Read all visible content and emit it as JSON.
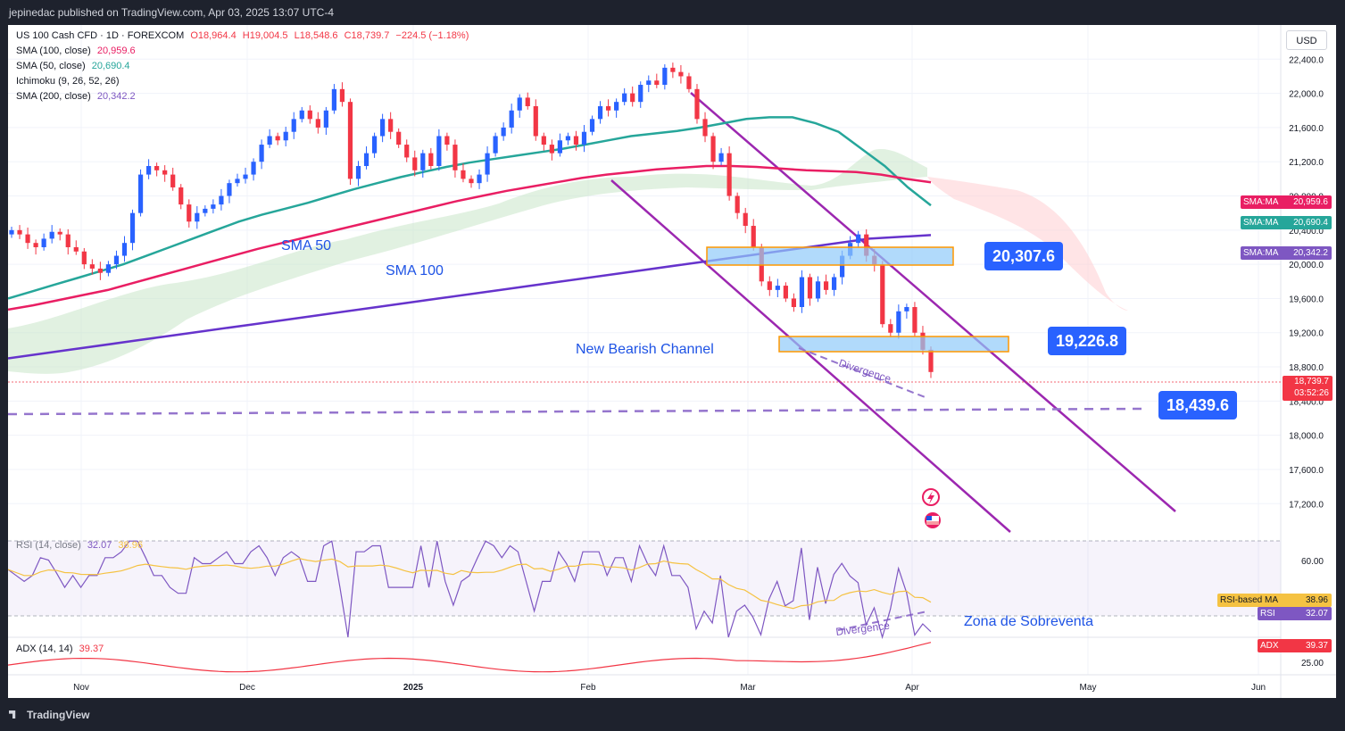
{
  "header": {
    "published": "jepinedac published on TradingView.com, Apr 03, 2025 13:07 UTC-4"
  },
  "footer": {
    "brand": "TradingView"
  },
  "chart": {
    "currency_button": "USD",
    "symbol_line": {
      "symbol": "US 100 Cash CFD · 1D · FOREXCOM",
      "o": "O18,964.4",
      "h": "H19,004.5",
      "l": "L18,548.6",
      "c": "C18,739.7",
      "chg": "−224.5 (−1.18%)"
    },
    "indicators": [
      {
        "label": "SMA (100, close)",
        "value": "20,959.6",
        "color": "#e91e63"
      },
      {
        "label": "SMA (50, close)",
        "value": "20,690.4",
        "color": "#26a69a"
      },
      {
        "label": "Ichimoku (9, 26, 52, 26)",
        "value": "",
        "color": "#131722"
      },
      {
        "label": "SMA (200, close)",
        "value": "20,342.2",
        "color": "#7e57c2"
      }
    ],
    "rsi_legend": {
      "label": "RSI (14, close)",
      "value": "32.07",
      "ma": "38.96"
    },
    "adx_legend": {
      "label": "ADX (14, 14)",
      "value": "39.37"
    },
    "annotations": {
      "sma50": "SMA 50",
      "sma100": "SMA 100",
      "channel": "New Bearish Channel",
      "divergence_price": "Divergence",
      "divergence_rsi": "Divergence",
      "oversold": "Zona de Sobreventa"
    },
    "callouts": {
      "upper": "20,307.6",
      "middle": "19,226.8",
      "lower": "18,439.6"
    },
    "price_axis_ticks": [
      "22,400.0",
      "22,000.0",
      "21,600.0",
      "21,200.0",
      "20,800.0",
      "20,400.0",
      "20,000.0",
      "19,600.0",
      "19,200.0",
      "18,800.0",
      "18,400.0",
      "18,000.0",
      "17,600.0",
      "17,200.0"
    ],
    "rsi_axis_ticks": [
      "60.00"
    ],
    "adx_axis_ticks": [
      "25.00"
    ],
    "time_axis": [
      "Nov",
      "Dec",
      "2025",
      "Feb",
      "Mar",
      "Apr",
      "May",
      "Jun"
    ],
    "price_tags": [
      {
        "label": "SMA:MA",
        "value": "20,959.6",
        "color": "#e91e63"
      },
      {
        "label": "SMA:MA",
        "value": "20,690.4",
        "color": "#26a69a"
      },
      {
        "label": "SMA:MA",
        "value": "20,342.2",
        "color": "#7e57c2"
      },
      {
        "label": "",
        "value": "18,739.7",
        "sub": "03:52:26",
        "color": "#f23645"
      },
      {
        "label": "RSI-based MA",
        "value": "38.96",
        "color": "#f5c242"
      },
      {
        "label": "RSI",
        "value": "32.07",
        "color": "#7e57c2"
      },
      {
        "label": "ADX",
        "value": "39.37",
        "color": "#f23645"
      }
    ],
    "colors": {
      "up": "#2962ff",
      "down": "#f23645",
      "channel": "#9c27b0",
      "zone_fill": "#90caf9",
      "zone_border": "#ff9800"
    }
  },
  "chart_data": {
    "type": "candlestick",
    "title": "US 100 Cash CFD · 1D · FOREXCOM",
    "ylim": [
      16900,
      22800
    ],
    "x_labels": [
      "Nov",
      "Dec",
      "2025",
      "Feb",
      "Mar",
      "Apr",
      "May",
      "Jun"
    ],
    "closes": [
      20400,
      20350,
      20250,
      20200,
      20300,
      20380,
      20350,
      20200,
      20150,
      20000,
      19950,
      19900,
      20000,
      20100,
      20250,
      20600,
      21050,
      21150,
      21100,
      21050,
      20900,
      20700,
      20500,
      20600,
      20650,
      20700,
      20800,
      20950,
      21000,
      21050,
      21200,
      21400,
      21500,
      21450,
      21550,
      21700,
      21800,
      21700,
      21600,
      21800,
      22050,
      21900,
      21000,
      21150,
      21300,
      21500,
      21700,
      21550,
      21400,
      21250,
      21100,
      21300,
      21150,
      21500,
      21400,
      21100,
      21000,
      20950,
      21050,
      21300,
      21500,
      21600,
      21800,
      21950,
      21850,
      21500,
      21400,
      21300,
      21450,
      21500,
      21400,
      21550,
      21700,
      21850,
      21800,
      21900,
      22000,
      21900,
      22100,
      22150,
      22100,
      22300,
      22250,
      22200,
      22050,
      21700,
      21500,
      21200,
      21300,
      20800,
      20600,
      20450,
      20200,
      19800,
      19700,
      19750,
      19600,
      19500,
      19850,
      19600,
      19800,
      19700,
      19850,
      20100,
      20250,
      20350,
      20100,
      20000,
      19300,
      19200,
      19450,
      19500,
      19200,
      19000,
      18740
    ],
    "sma50": [
      19600,
      19680,
      19760,
      19840,
      19920,
      20000,
      20100,
      20200,
      20300,
      20400,
      20500,
      20580,
      20650,
      20720,
      20800,
      20880,
      20950,
      21020,
      21080,
      21140,
      21190,
      21230,
      21270,
      21310,
      21350,
      21400,
      21450,
      21500,
      21530,
      21560,
      21600,
      21650,
      21700,
      21720,
      21720,
      21650,
      21550,
      21350,
      21150,
      20900,
      20690
    ],
    "sma100": [
      19470,
      19520,
      19580,
      19640,
      19700,
      19780,
      19860,
      19940,
      20020,
      20100,
      20180,
      20250,
      20320,
      20390,
      20460,
      20530,
      20600,
      20670,
      20740,
      20800,
      20860,
      20910,
      20960,
      21010,
      21050,
      21080,
      21110,
      21130,
      21150,
      21150,
      21140,
      21120,
      21100,
      21090,
      21080,
      21050,
      21000,
      20959
    ],
    "sma200": [
      18900,
      19000,
      19100,
      19200,
      19300,
      19400,
      19500,
      19600,
      19700,
      19800,
      19900,
      20000,
      20100,
      20200,
      20300,
      20342
    ],
    "levels": [
      20307.6,
      19226.8,
      18439.6
    ],
    "rsi": {
      "value": 32.07,
      "ma": 38.96,
      "ticks": [
        60.0
      ]
    },
    "adx": {
      "value": 39.37,
      "ticks": [
        25.0
      ]
    }
  }
}
